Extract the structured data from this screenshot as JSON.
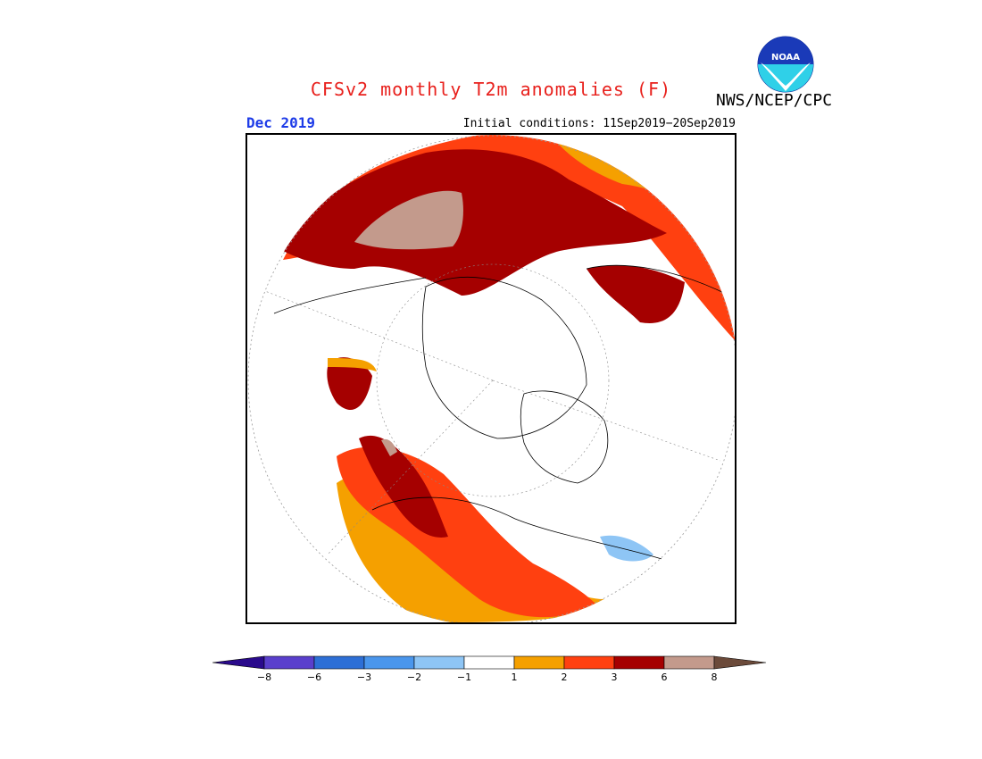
{
  "header": {
    "title": "CFSv2 monthly T2m anomalies (F)",
    "agency": "NWS/NCEP/CPC",
    "logo_text": "NOAA",
    "valid_month": "Dec 2019",
    "initial_conditions": "Initial conditions: 11Sep2019−20Sep2019"
  },
  "map": {
    "projection": "polar stereographic, Northern Hemisphere",
    "variable": "2-m temperature anomaly",
    "units": "F"
  },
  "colorbar": {
    "labels": [
      "−8",
      "−6",
      "−3",
      "−2",
      "−1",
      "1",
      "2",
      "3",
      "6",
      "8"
    ],
    "colors": [
      "#2a0a8c",
      "#5a3fcc",
      "#2d6fd6",
      "#4a96ec",
      "#8ec5f5",
      "#ffffff",
      "#f5a000",
      "#ff4010",
      "#a50000",
      "#c39a8c",
      "#6b4a3a"
    ]
  }
}
